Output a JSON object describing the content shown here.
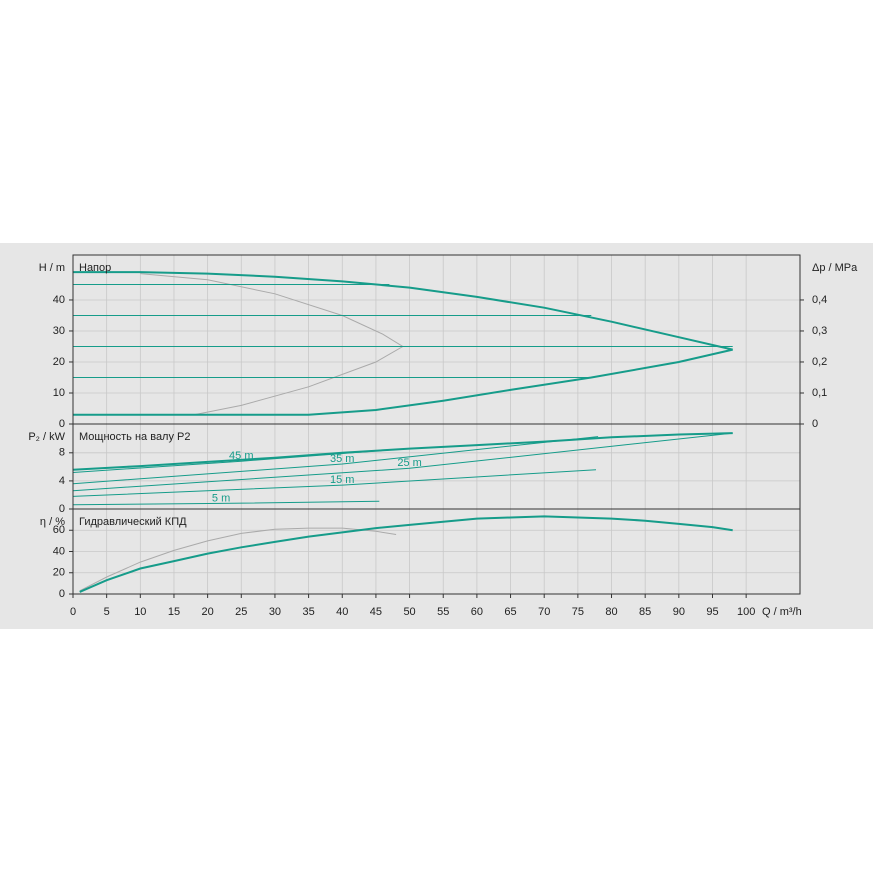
{
  "chart_data": [
    {
      "type": "line",
      "title": "Напор",
      "ylabel": "H / m",
      "y2label": "Δp / MPa",
      "ylim": [
        0,
        54.5
      ],
      "yticks": [
        0,
        10,
        20,
        30,
        40
      ],
      "y2lim": [
        0,
        0.545
      ],
      "y2ticks": [
        0,
        {
          "value": 0.1,
          "label": "0,1"
        },
        {
          "value": 0.2,
          "label": "0,2"
        },
        {
          "value": 0.3,
          "label": "0,3"
        },
        {
          "value": 0.4,
          "label": "0,4"
        }
      ],
      "grid": true,
      "series": [
        {
          "color": "#aaaaaa",
          "width": 1,
          "x": [
            10,
            20,
            30,
            40,
            46,
            49,
            45,
            35,
            25,
            18
          ],
          "values": [
            48.5,
            46.5,
            42,
            35,
            29,
            25,
            20,
            12,
            6,
            3
          ]
        },
        {
          "color": "#169c8a",
          "width": 1,
          "x": [
            0,
            47
          ],
          "values": [
            45,
            45
          ]
        },
        {
          "color": "#169c8a",
          "width": 1,
          "x": [
            0,
            77
          ],
          "values": [
            35,
            35
          ]
        },
        {
          "color": "#169c8a",
          "width": 1,
          "x": [
            0,
            98
          ],
          "values": [
            25,
            25
          ]
        },
        {
          "color": "#169c8a",
          "width": 1,
          "x": [
            0,
            77
          ],
          "values": [
            15,
            15
          ]
        },
        {
          "color": "#169c8a",
          "width": 2,
          "x": [
            0,
            10,
            20,
            30,
            40,
            50,
            60,
            70,
            80,
            90,
            98
          ],
          "values": [
            49,
            49,
            48.5,
            47.5,
            46,
            44,
            41,
            37.5,
            33,
            28,
            24
          ]
        },
        {
          "color": "#169c8a",
          "width": 2,
          "x": [
            0,
            35,
            45,
            55,
            65,
            77,
            90,
            98
          ],
          "values": [
            3,
            3,
            4.5,
            7.5,
            11,
            15,
            20,
            24
          ]
        }
      ]
    },
    {
      "type": "line",
      "title": "Мощность на валу P2",
      "ylabel": "P₂ / kW",
      "ylim": [
        0,
        12.1
      ],
      "yticks": [
        0,
        4,
        8
      ],
      "grid": true,
      "series": [
        {
          "color": "#169c8a",
          "width": 2,
          "x": [
            0,
            10,
            20,
            30,
            40,
            50,
            60,
            70,
            80,
            90,
            98
          ],
          "values": [
            5.6,
            6.1,
            6.7,
            7.3,
            8,
            8.6,
            9.1,
            9.6,
            10.2,
            10.6,
            10.8
          ]
        },
        {
          "name": "45 m",
          "color": "#169c8a",
          "width": 1,
          "x": [
            0,
            25,
            47
          ],
          "values": [
            5.2,
            6.8,
            8.4
          ]
        },
        {
          "name": "35 m",
          "color": "#169c8a",
          "width": 1,
          "x": [
            0,
            40,
            78
          ],
          "values": [
            3.6,
            6.4,
            10.3
          ]
        },
        {
          "name": "25 m",
          "color": "#169c8a",
          "width": 1,
          "x": [
            0,
            50,
            98
          ],
          "values": [
            2.6,
            5.8,
            10.8
          ]
        },
        {
          "name": "15 m",
          "color": "#169c8a",
          "width": 1,
          "x": [
            0,
            40,
            77.7
          ],
          "values": [
            1.8,
            3.4,
            5.6
          ]
        },
        {
          "name": "5 m",
          "color": "#169c8a",
          "width": 1,
          "x": [
            0,
            22,
            45.5
          ],
          "values": [
            0.6,
            0.8,
            1.1
          ]
        }
      ]
    },
    {
      "type": "line",
      "title": "Гидравлический КПД",
      "ylabel": "η / %",
      "xlabel": "Q / m³/h",
      "ylim": [
        0,
        80
      ],
      "yticks": [
        0,
        20,
        40,
        60
      ],
      "xlim": [
        0,
        108
      ],
      "xticks": [
        0,
        5,
        10,
        15,
        20,
        25,
        30,
        35,
        40,
        45,
        50,
        55,
        60,
        65,
        70,
        75,
        80,
        85,
        90,
        95,
        100
      ],
      "grid": true,
      "series": [
        {
          "color": "#aaaaaa",
          "width": 1,
          "x": [
            1,
            5,
            10,
            15,
            20,
            25,
            30,
            35,
            40,
            45,
            48
          ],
          "values": [
            3,
            16,
            30,
            41,
            50,
            57,
            61,
            62,
            62,
            59,
            56
          ]
        },
        {
          "color": "#169c8a",
          "width": 2,
          "x": [
            1,
            5,
            10,
            15,
            20,
            25,
            30,
            35,
            40,
            45,
            50,
            55,
            60,
            65,
            70,
            75,
            80,
            85,
            90,
            95,
            98
          ],
          "values": [
            2,
            13,
            24,
            31,
            38,
            44,
            49,
            54,
            58,
            62,
            65,
            68,
            71,
            72,
            73,
            72,
            71,
            69,
            66,
            63,
            60
          ]
        }
      ]
    }
  ]
}
